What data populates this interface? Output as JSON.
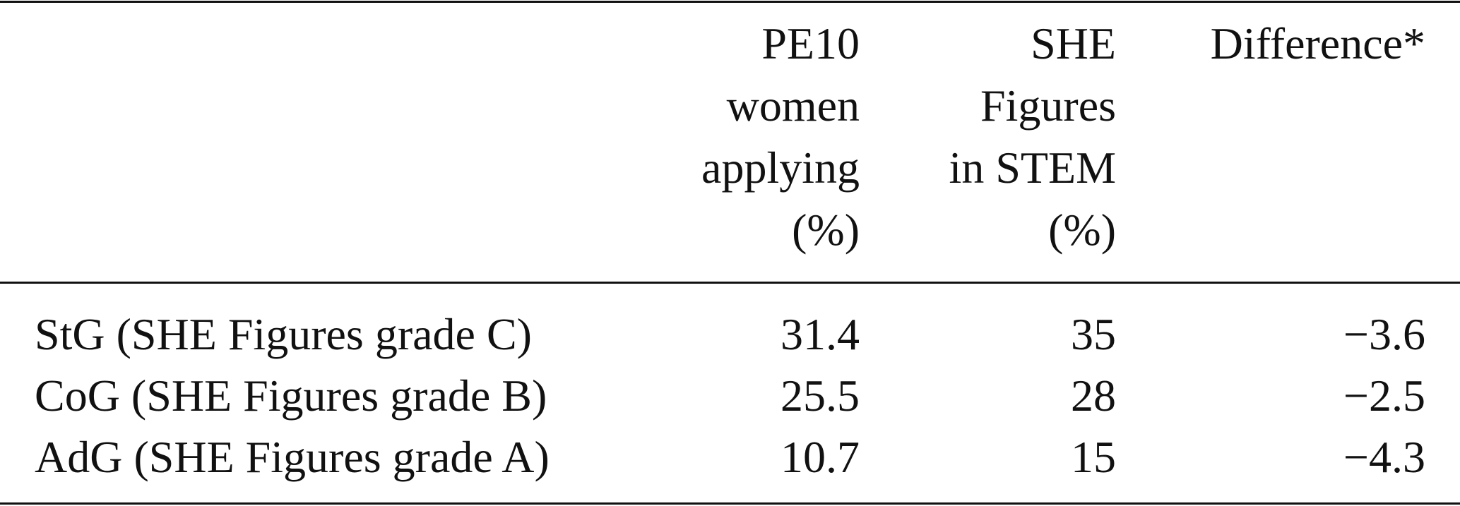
{
  "table": {
    "headers": [
      [
        "PE10",
        "women",
        "applying",
        "(%)"
      ],
      [
        "SHE",
        "Figures",
        "in STEM",
        "(%)"
      ],
      [
        "Difference*"
      ]
    ],
    "rows": [
      [
        "StG (SHE Figures grade C)",
        "31.4",
        "35",
        "−3.6"
      ],
      [
        "CoG (SHE Figures grade B)",
        "25.5",
        "28",
        "−2.5"
      ],
      [
        "AdG (SHE Figures grade A)",
        "10.7",
        "15",
        "−4.3"
      ]
    ]
  }
}
